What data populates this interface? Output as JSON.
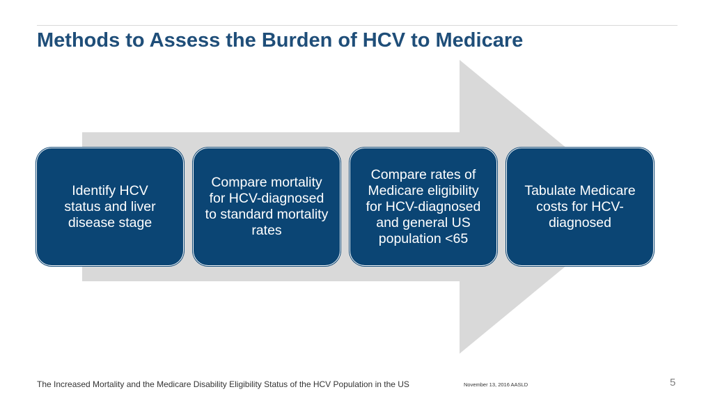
{
  "slide": {
    "title": "Methods to Assess the Burden of HCV to Medicare",
    "steps": [
      {
        "label": "Identify HCV status and liver disease stage"
      },
      {
        "label": "Compare mortality for HCV-diagnosed to standard mortality rates"
      },
      {
        "label": "Compare rates of Medicare eligibility for HCV-diagnosed and general US population <65"
      },
      {
        "label": "Tabulate Medicare costs for HCV-diagnosed"
      }
    ],
    "footer": {
      "citation": "The Increased Mortality and the Medicare Disability Eligibility Status of the HCV Population in the US",
      "date": "November 13, 2016  AASLD",
      "page_number": "5"
    },
    "colors": {
      "title": "#1f4e79",
      "box_fill": "#0b4574",
      "arrow_fill": "#d9d9d9"
    }
  }
}
